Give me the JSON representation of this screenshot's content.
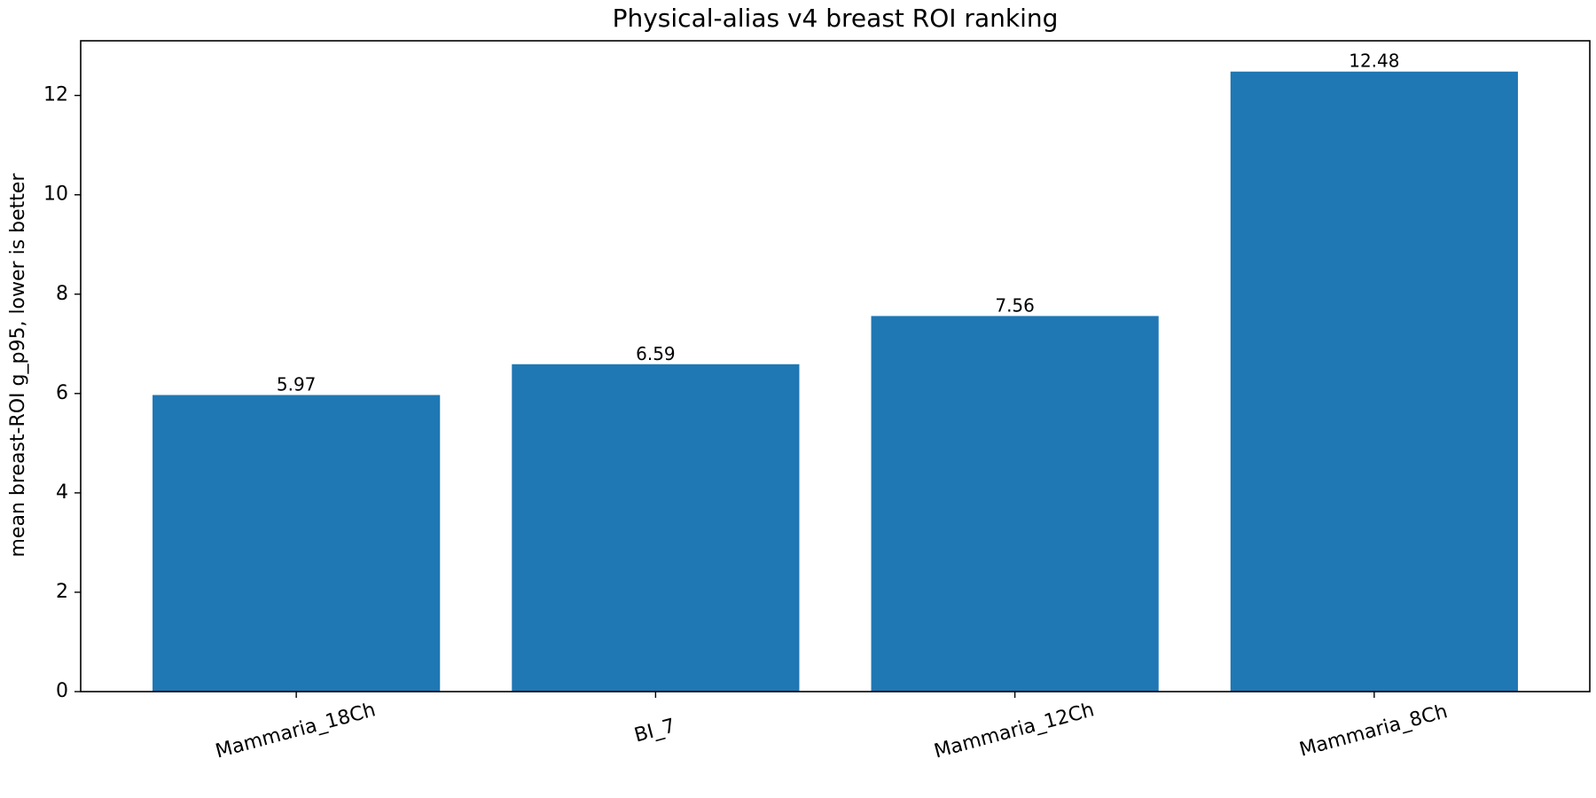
{
  "chart_data": {
    "type": "bar",
    "title": "Physical-alias v4 breast ROI ranking",
    "xlabel": "",
    "ylabel": "mean breast-ROI g_p95, lower is better",
    "categories": [
      "Mammaria_18Ch",
      "BI_7",
      "Mammaria_12Ch",
      "Mammaria_8Ch"
    ],
    "values": [
      5.97,
      6.59,
      7.56,
      12.48
    ],
    "value_labels": [
      "5.97",
      "6.59",
      "7.56",
      "12.48"
    ],
    "yticks": [
      0,
      2,
      4,
      6,
      8,
      10,
      12
    ],
    "ytick_labels": [
      "0",
      "2",
      "4",
      "6",
      "8",
      "10",
      "12"
    ],
    "ylim": [
      0,
      13.1
    ],
    "grid": false,
    "bar_color": "#1f77b4"
  }
}
